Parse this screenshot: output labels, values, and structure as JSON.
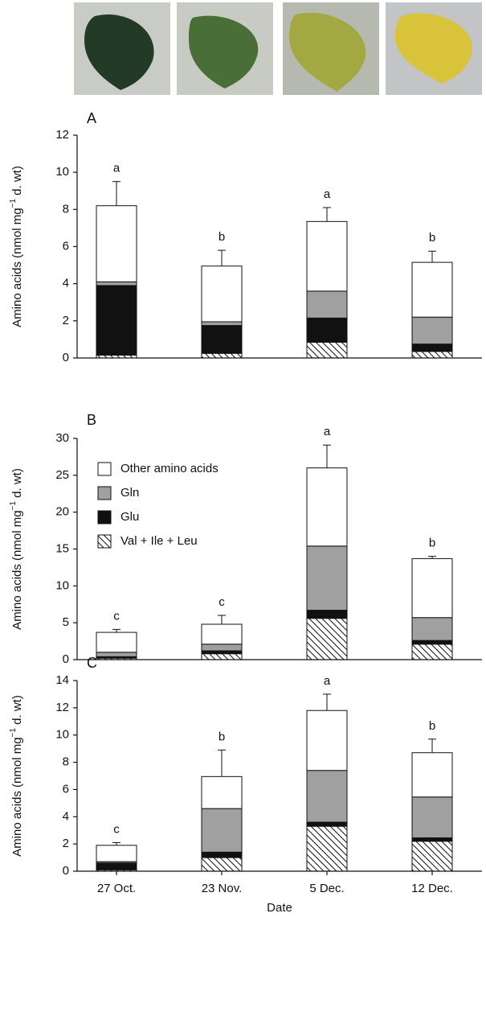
{
  "chart_data": [
    {
      "type": "bar",
      "panel": "A",
      "y_label": "Amino acids (nmol mg",
      "y_label_sup": "−1",
      "y_label_end": " d. wt)",
      "ylim": [
        0,
        12
      ],
      "yticks": [
        0,
        2,
        4,
        6,
        8,
        10,
        12
      ],
      "series": [
        {
          "color": "#ffffff",
          "hatch": true,
          "values": [
            0.15,
            0.25,
            0.85,
            0.35
          ]
        },
        {
          "color": "#111111",
          "values": [
            3.75,
            1.5,
            1.3,
            0.4
          ]
        },
        {
          "color": "#a0a0a0",
          "values": [
            0.2,
            0.2,
            1.45,
            1.45
          ]
        },
        {
          "color": "#ffffff",
          "values": [
            4.1,
            3.0,
            3.75,
            2.95
          ]
        }
      ],
      "errors": [
        1.3,
        0.85,
        0.75,
        0.6
      ],
      "letters": [
        "a",
        "b",
        "a",
        "b"
      ]
    },
    {
      "type": "bar",
      "panel": "B",
      "y_label": "Amino acids (nmol mg",
      "y_label_sup": "−1",
      "y_label_end": " d. wt)",
      "ylim": [
        0,
        30
      ],
      "yticks": [
        0,
        5,
        10,
        15,
        20,
        25,
        30
      ],
      "legend": "upper left",
      "series": [
        {
          "name": "Val + Ile + Leu",
          "color": "#ffffff",
          "hatch": true,
          "values": [
            0.2,
            0.8,
            5.6,
            2.1
          ]
        },
        {
          "name": "Glu",
          "color": "#111111",
          "values": [
            0.2,
            0.4,
            1.1,
            0.5
          ]
        },
        {
          "name": "Gln",
          "color": "#a0a0a0",
          "values": [
            0.6,
            0.9,
            8.7,
            3.1
          ]
        },
        {
          "name": "Other amino acids",
          "color": "#ffffff",
          "values": [
            2.7,
            2.7,
            10.6,
            8.0
          ]
        }
      ],
      "errors": [
        0.4,
        1.2,
        3.1,
        0.3
      ],
      "letters": [
        "c",
        "c",
        "a",
        "b"
      ]
    },
    {
      "type": "bar",
      "panel": "C",
      "y_label": "Amino acids (nmol mg",
      "y_label_sup": "−1",
      "y_label_end": " d. wt)",
      "x_label": "Date",
      "categories": [
        "27 Oct.",
        "23 Nov.",
        "5 Dec.",
        "12 Dec."
      ],
      "ylim": [
        0,
        14
      ],
      "yticks": [
        0,
        2,
        4,
        6,
        8,
        10,
        12,
        14
      ],
      "series": [
        {
          "color": "#ffffff",
          "hatch": true,
          "values": [
            0.1,
            1.0,
            3.3,
            2.2
          ]
        },
        {
          "color": "#111111",
          "values": [
            0.5,
            0.4,
            0.3,
            0.25
          ]
        },
        {
          "color": "#a0a0a0",
          "values": [
            0.1,
            3.2,
            3.8,
            3.0
          ]
        },
        {
          "color": "#ffffff",
          "values": [
            1.2,
            2.35,
            4.4,
            3.25
          ]
        }
      ],
      "errors": [
        0.2,
        1.95,
        1.2,
        1.0
      ],
      "letters": [
        "c",
        "b",
        "a",
        "b"
      ]
    }
  ]
}
